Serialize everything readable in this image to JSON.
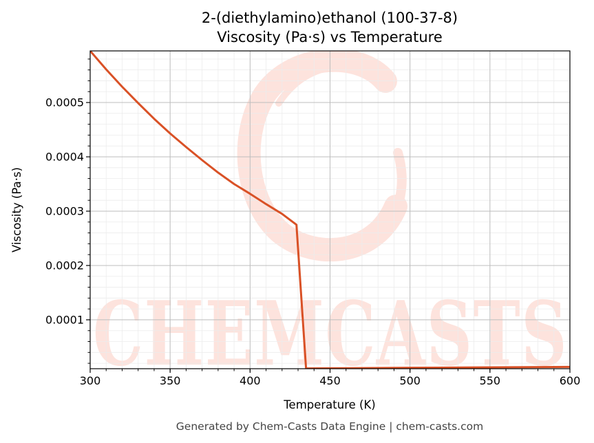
{
  "chart_data": {
    "type": "line",
    "title": [
      "2-(diethylamino)ethanol (100-37-8)",
      "Viscosity (Pa·s) vs Temperature"
    ],
    "xlabel": "Temperature (K)",
    "ylabel": "Viscosity (Pa·s)",
    "xlim": [
      300,
      600
    ],
    "ylim": [
      1e-05,
      0.000595
    ],
    "x_ticks": [
      300,
      350,
      400,
      450,
      500,
      550,
      600
    ],
    "x_tick_labels": [
      "300",
      "350",
      "400",
      "450",
      "500",
      "550",
      "600"
    ],
    "y_ticks": [
      0.0001,
      0.0002,
      0.0003,
      0.0004,
      0.0005
    ],
    "y_tick_labels": [
      "0.0001",
      "0.0002",
      "0.0003",
      "0.0004",
      "0.0005"
    ],
    "grid": true,
    "legend": false,
    "series": [
      {
        "color": "#d95126",
        "x": [
          300,
          310,
          320,
          330,
          340,
          350,
          360,
          370,
          380,
          390,
          400,
          410,
          420,
          429,
          435,
          450,
          500,
          550,
          600
        ],
        "y": [
          0.000595,
          0.000561,
          0.000529,
          0.000499,
          0.00047,
          0.000443,
          0.000418,
          0.000394,
          0.000371,
          0.00035,
          0.000332,
          0.000313,
          0.000295,
          0.000275,
          1.05e-05,
          1.08e-05,
          1.17e-05,
          1.25e-05,
          1.33e-05
        ]
      }
    ]
  },
  "watermark": {
    "text": "CHEMCASTS",
    "color": "#fde3dd"
  },
  "footer": "Generated by Chem-Casts Data Engine | chem-casts.com"
}
